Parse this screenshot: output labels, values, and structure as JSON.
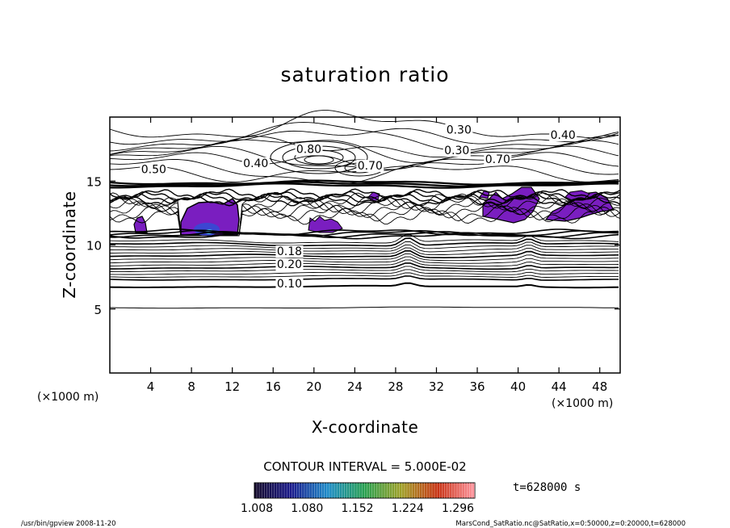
{
  "chart_data": {
    "type": "contour",
    "title": "saturation ratio",
    "xlabel": "X-coordinate",
    "ylabel": "Z-coordinate",
    "x_unit_left": "(×1000 m)",
    "x_unit_right": "(×1000 m)",
    "xlim": [
      0,
      50
    ],
    "ylim": [
      0,
      20
    ],
    "x_ticks": [
      "4",
      "8",
      "12",
      "16",
      "20",
      "24",
      "28",
      "32",
      "36",
      "40",
      "44",
      "48"
    ],
    "x_tick_values": [
      4,
      8,
      12,
      16,
      20,
      24,
      28,
      32,
      36,
      40,
      44,
      48
    ],
    "y_ticks": [
      "5",
      "10",
      "15"
    ],
    "y_tick_values": [
      5,
      10,
      15
    ],
    "contour_interval_text": "CONTOUR INTERVAL = 5.000E-02",
    "contour_labels": [
      {
        "text": "0.10",
        "x": 17.6,
        "z": 6.7
      },
      {
        "text": "0.20",
        "x": 17.6,
        "z": 8.2
      },
      {
        "text": "0.18",
        "x": 17.6,
        "z": 9.2
      },
      {
        "text": "0.40",
        "x": 14.3,
        "z": 16.1
      },
      {
        "text": "0.50",
        "x": 4.3,
        "z": 15.6
      },
      {
        "text": "0.30",
        "x": 34.2,
        "z": 18.7
      },
      {
        "text": "0.30",
        "x": 34.0,
        "z": 17.1
      },
      {
        "text": "0.40",
        "x": 44.4,
        "z": 18.3
      },
      {
        "text": "0.70",
        "x": 38.0,
        "z": 16.4
      },
      {
        "text": "0.70",
        "x": 25.5,
        "z": 15.9
      },
      {
        "text": "0.80",
        "x": 19.5,
        "z": 17.2
      }
    ],
    "filled_regions_value_range": [
      1.008,
      1.296
    ],
    "colorbar": {
      "labels": [
        "1.008",
        "1.080",
        "1.152",
        "1.224",
        "1.296"
      ],
      "values": [
        1.008,
        1.08,
        1.152,
        1.224,
        1.296
      ],
      "colors": [
        "#140a2a",
        "#1a1a8c",
        "#1e8cc8",
        "#28a050",
        "#a0a028",
        "#c83214",
        "#ff96a0"
      ]
    },
    "time_text": "t=628000 s"
  },
  "footer": {
    "left": "/usr/bin/gpview   2008-11-20",
    "right": "MarsCond_SatRatio.nc@SatRatio,x=0:50000,z=0:20000,t=628000"
  },
  "colors": {
    "fill_primary": "#7a1ec0",
    "fill_center": "#3c46d2"
  }
}
